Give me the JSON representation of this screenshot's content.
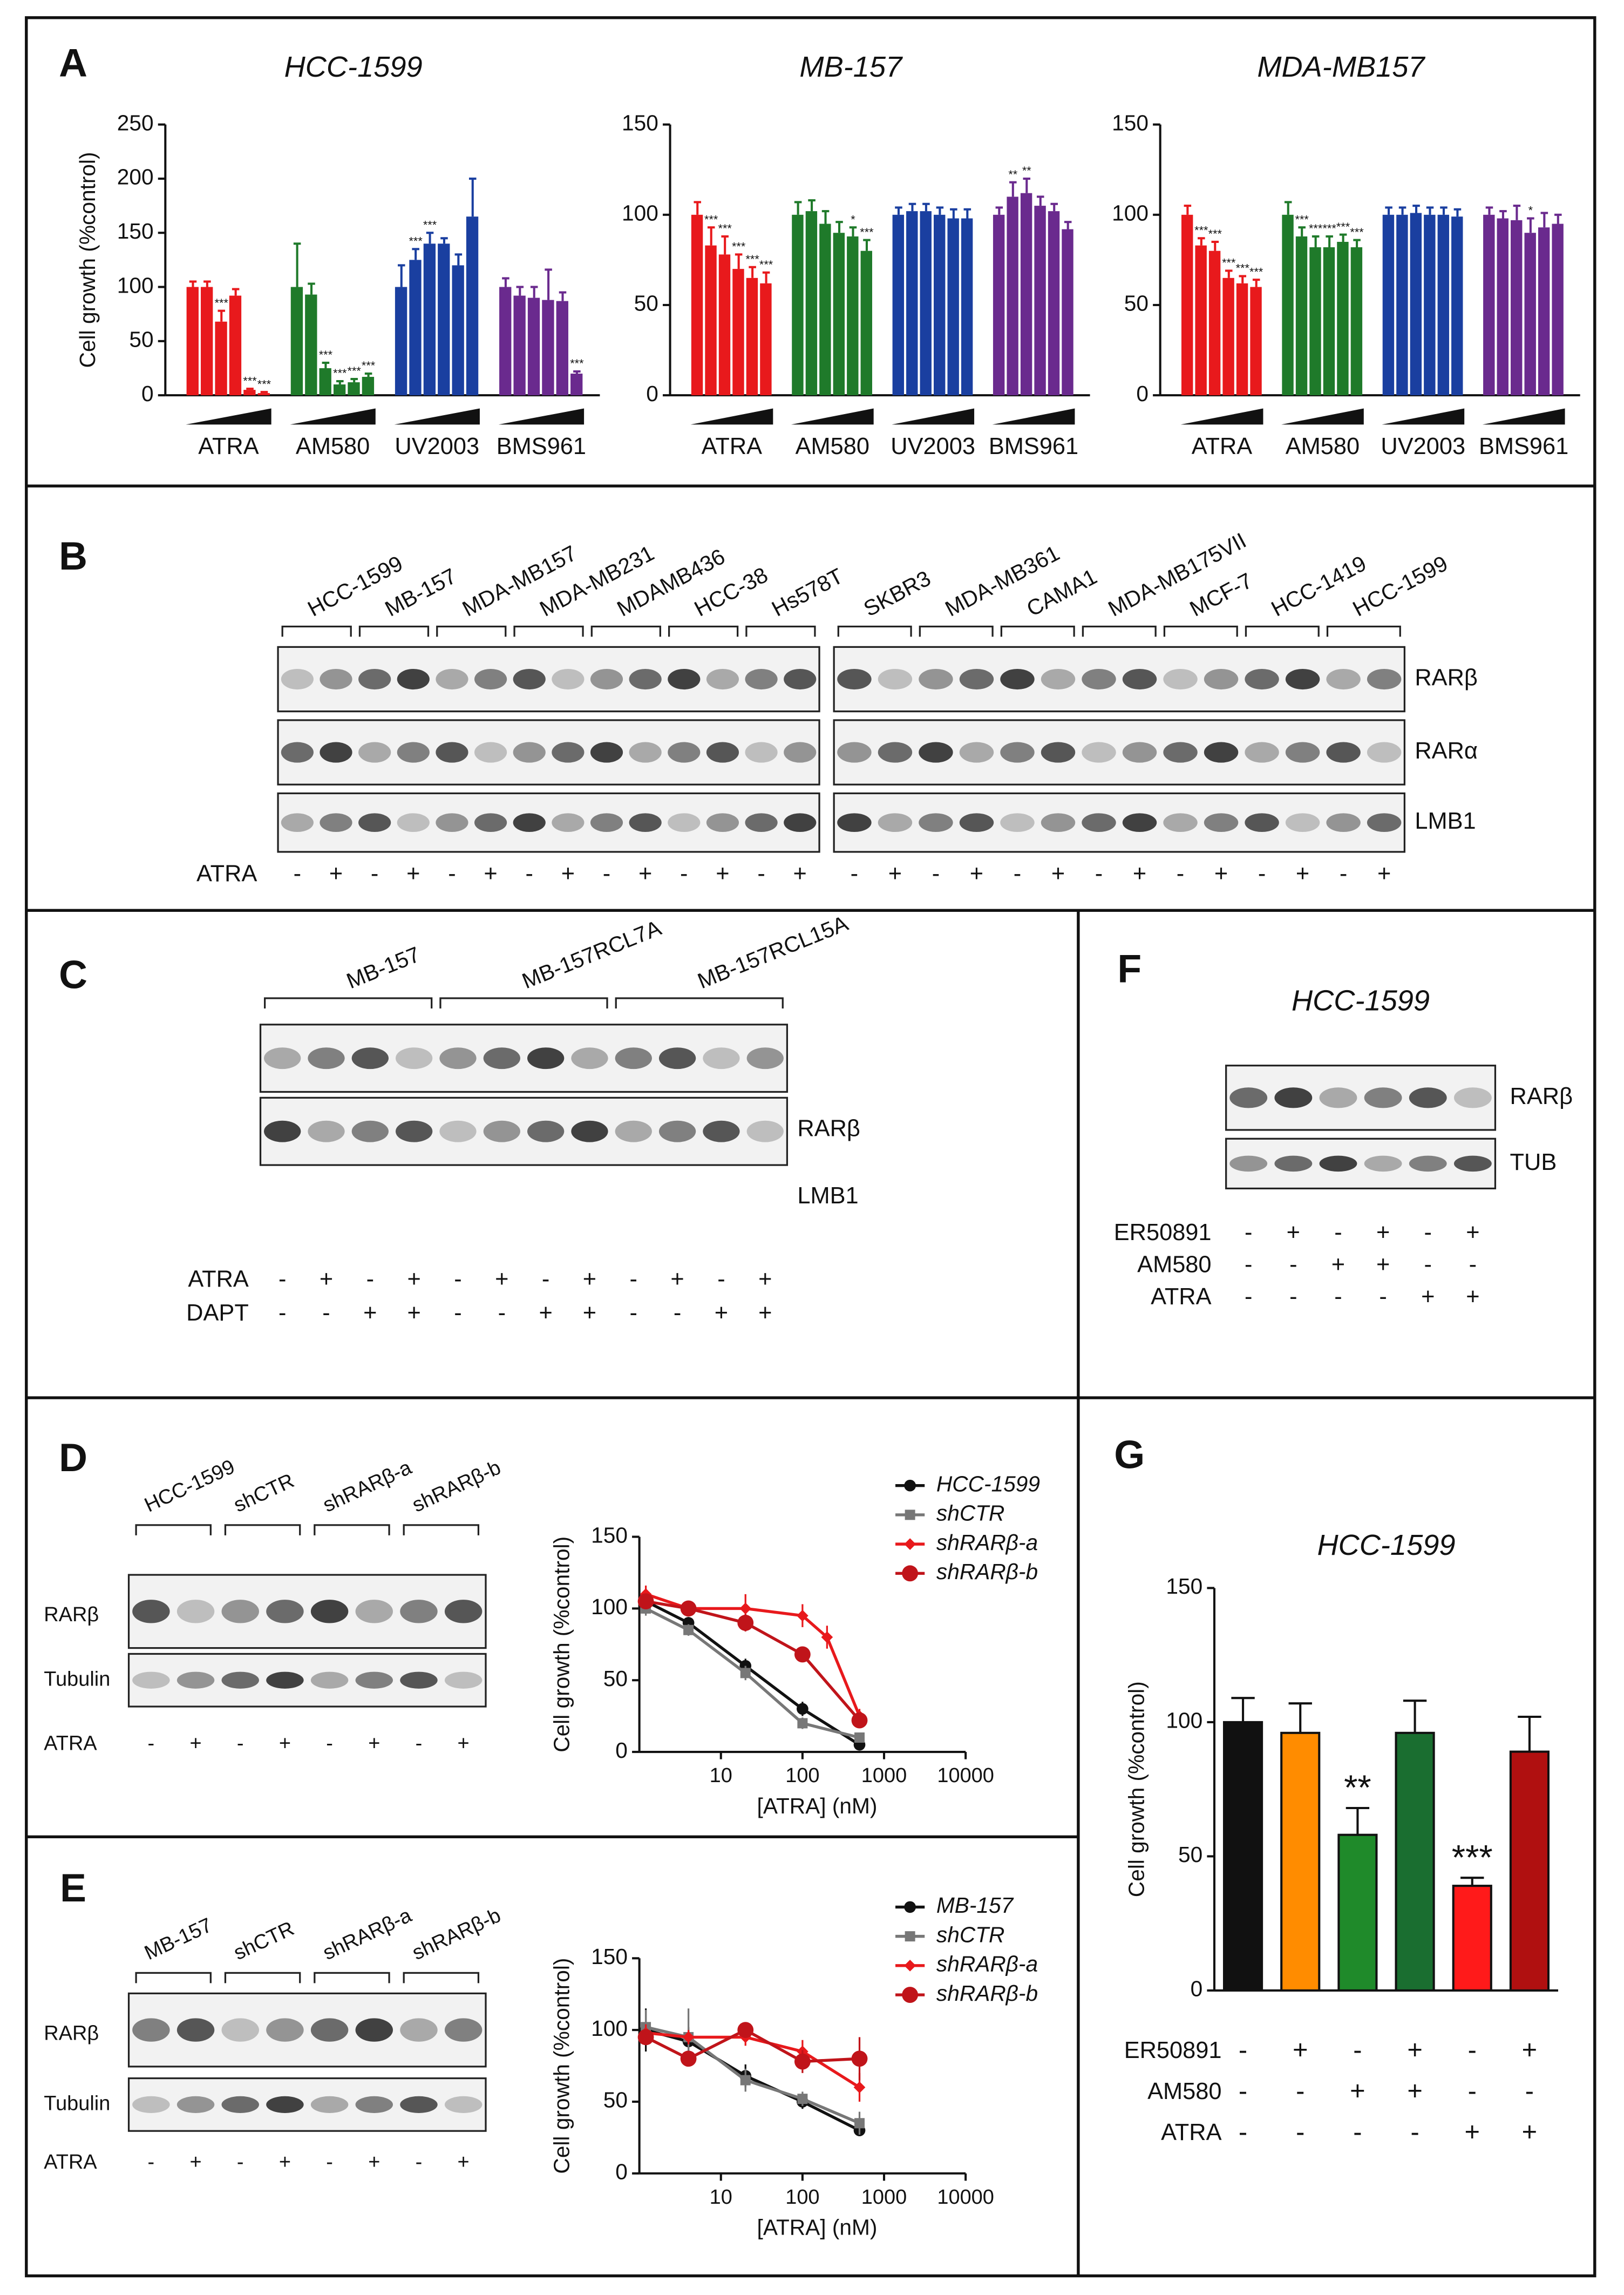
{
  "panel_labels": [
    "A",
    "B",
    "C",
    "D",
    "E",
    "F",
    "G"
  ],
  "chart_data": [
    {
      "type": "bar",
      "title": "HCC-1599",
      "y_label": "Cell growth (%control)",
      "ylim": [
        0,
        250
      ],
      "yticks": [
        0,
        50,
        100,
        150,
        200,
        250
      ],
      "groups": [
        {
          "name": "ATRA",
          "color": "#e8191c",
          "values": [
            100,
            100,
            68,
            92,
            5,
            2
          ],
          "errors": [
            5,
            5,
            10,
            6,
            1,
            1
          ],
          "annotations": [
            null,
            null,
            "***",
            null,
            "***",
            "***"
          ]
        },
        {
          "name": "AM580",
          "color": "#1f7a2a",
          "values": [
            100,
            93,
            25,
            10,
            12,
            17
          ],
          "errors": [
            40,
            10,
            5,
            3,
            3,
            3
          ],
          "annotations": [
            null,
            null,
            "***",
            "***",
            "***",
            "***"
          ]
        },
        {
          "name": "UV2003",
          "color": "#1a3fa0",
          "values": [
            100,
            125,
            140,
            140,
            120,
            165
          ],
          "errors": [
            20,
            10,
            10,
            5,
            10,
            35
          ],
          "annotations": [
            null,
            "***",
            "***",
            null,
            null,
            null
          ]
        },
        {
          "name": "BMS961",
          "color": "#6a2a8e",
          "values": [
            100,
            92,
            90,
            88,
            87,
            20
          ],
          "errors": [
            8,
            8,
            10,
            28,
            8,
            2
          ],
          "annotations": [
            null,
            null,
            null,
            null,
            null,
            "***"
          ]
        }
      ]
    },
    {
      "type": "bar",
      "title": "MB-157",
      "ylim": [
        0,
        150
      ],
      "yticks": [
        0,
        50,
        100,
        150
      ],
      "groups": [
        {
          "name": "ATRA",
          "color": "#e8191c",
          "values": [
            100,
            83,
            78,
            70,
            65,
            62
          ],
          "errors": [
            7,
            10,
            10,
            8,
            6,
            6
          ],
          "annotations": [
            null,
            "***",
            "***",
            "***",
            "***",
            "***"
          ]
        },
        {
          "name": "AM580",
          "color": "#1f7a2a",
          "values": [
            100,
            102,
            95,
            90,
            88,
            80
          ],
          "errors": [
            7,
            6,
            7,
            6,
            5,
            6
          ],
          "annotations": [
            null,
            null,
            null,
            null,
            "*",
            "***"
          ]
        },
        {
          "name": "UV2003",
          "color": "#1a3fa0",
          "values": [
            100,
            102,
            102,
            100,
            98,
            98
          ],
          "errors": [
            4,
            4,
            4,
            4,
            5,
            5
          ],
          "annotations": [
            null,
            null,
            null,
            null,
            null,
            null
          ]
        },
        {
          "name": "BMS961",
          "color": "#6a2a8e",
          "values": [
            100,
            110,
            112,
            105,
            102,
            92
          ],
          "errors": [
            4,
            8,
            8,
            5,
            4,
            4
          ],
          "annotations": [
            null,
            "**",
            "**",
            null,
            null,
            null
          ]
        }
      ]
    },
    {
      "type": "bar",
      "title": "MDA-MB157",
      "ylim": [
        0,
        150
      ],
      "yticks": [
        0,
        50,
        100,
        150
      ],
      "groups": [
        {
          "name": "ATRA",
          "color": "#e8191c",
          "values": [
            100,
            83,
            80,
            65,
            62,
            60
          ],
          "errors": [
            5,
            4,
            5,
            4,
            4,
            4
          ],
          "annotations": [
            null,
            "***",
            "***",
            "***",
            "***",
            "***"
          ]
        },
        {
          "name": "AM580",
          "color": "#1f7a2a",
          "values": [
            100,
            88,
            82,
            82,
            85,
            82
          ],
          "errors": [
            7,
            5,
            6,
            6,
            4,
            4
          ],
          "annotations": [
            null,
            "***",
            "***",
            "***",
            "***",
            "***"
          ]
        },
        {
          "name": "UV2003",
          "color": "#1a3fa0",
          "values": [
            100,
            100,
            101,
            100,
            100,
            99
          ],
          "errors": [
            4,
            4,
            4,
            4,
            4,
            4
          ],
          "annotations": [
            null,
            null,
            null,
            null,
            null,
            null
          ]
        },
        {
          "name": "BMS961",
          "color": "#6a2a8e",
          "values": [
            100,
            98,
            97,
            90,
            93,
            95
          ],
          "errors": [
            4,
            4,
            8,
            8,
            8,
            5
          ],
          "annotations": [
            null,
            null,
            null,
            "*",
            null,
            null
          ]
        }
      ]
    },
    {
      "type": "line",
      "y_label": "Cell growth (%control)",
      "x_label": "[ATRA] (nM)",
      "log_x": true,
      "xlim": [
        1,
        10000
      ],
      "xticks": [
        10,
        100,
        1000,
        10000
      ],
      "ylim": [
        0,
        150
      ],
      "yticks": [
        0,
        50,
        100,
        150
      ],
      "series": [
        {
          "name": "HCC-1599",
          "color": "#111111",
          "marker": "circle",
          "x": [
            1.2,
            4,
            20,
            100,
            500
          ],
          "values": [
            105,
            90,
            60,
            30,
            5
          ],
          "errors": [
            8,
            4,
            5,
            5,
            3
          ]
        },
        {
          "name": "shCTR",
          "color": "#777777",
          "marker": "square",
          "x": [
            1.2,
            4,
            20,
            100,
            500
          ],
          "values": [
            100,
            85,
            55,
            20,
            10
          ],
          "errors": [
            5,
            4,
            5,
            4,
            3
          ]
        },
        {
          "name": "shRARβ-a",
          "color": "#e8191c",
          "marker": "diamond",
          "x": [
            1.2,
            4,
            20,
            100,
            200,
            500
          ],
          "values": [
            110,
            100,
            100,
            95,
            80,
            25
          ],
          "errors": [
            6,
            5,
            10,
            8,
            8,
            5
          ]
        },
        {
          "name": "shRARβ-b",
          "color": "#c0141a",
          "marker": "dot",
          "x": [
            1.2,
            4,
            20,
            100,
            500
          ],
          "values": [
            105,
            100,
            90,
            68,
            22
          ],
          "errors": [
            5,
            4,
            6,
            5,
            5
          ]
        }
      ]
    },
    {
      "type": "line",
      "y_label": "Cell growth (%control)",
      "x_label": "[ATRA] (nM)",
      "log_x": true,
      "xlim": [
        1,
        10000
      ],
      "xticks": [
        10,
        100,
        1000,
        10000
      ],
      "ylim": [
        0,
        150
      ],
      "yticks": [
        0,
        50,
        100,
        150
      ],
      "series": [
        {
          "name": "MB-157",
          "color": "#111111",
          "marker": "circle",
          "x": [
            1.2,
            4,
            20,
            100,
            500
          ],
          "values": [
            100,
            92,
            68,
            50,
            30
          ],
          "errors": [
            15,
            10,
            8,
            5,
            4
          ]
        },
        {
          "name": "shCTR",
          "color": "#777777",
          "marker": "square",
          "x": [
            1.2,
            4,
            20,
            100,
            500
          ],
          "values": [
            102,
            95,
            65,
            52,
            35
          ],
          "errors": [
            12,
            20,
            8,
            5,
            8
          ]
        },
        {
          "name": "shRARβ-a",
          "color": "#e8191c",
          "marker": "diamond",
          "x": [
            1.2,
            4,
            20,
            100,
            500
          ],
          "values": [
            98,
            95,
            95,
            85,
            60
          ],
          "errors": [
            6,
            5,
            6,
            8,
            10
          ]
        },
        {
          "name": "shRARβ-b",
          "color": "#c0141a",
          "marker": "dot",
          "x": [
            1.2,
            4,
            20,
            100,
            500
          ],
          "values": [
            95,
            80,
            100,
            78,
            80
          ],
          "errors": [
            5,
            5,
            5,
            8,
            15
          ]
        }
      ]
    },
    {
      "type": "bar",
      "title": "HCC-1599",
      "y_label": "Cell growth (%control)",
      "ylim": [
        0,
        150
      ],
      "yticks": [
        0,
        50,
        100,
        150
      ],
      "values": [
        100,
        96,
        58,
        96,
        39,
        89
      ],
      "errors": [
        9,
        11,
        10,
        12,
        3,
        13
      ],
      "colors": [
        "#111111",
        "#ff8c00",
        "#1f8a2a",
        "#1a6e30",
        "#ff1a1a",
        "#b01010"
      ],
      "annotations": [
        null,
        null,
        "**",
        null,
        "***",
        null
      ],
      "conditions": [
        {
          "name": "ER50891",
          "signs": [
            "-",
            "+",
            "-",
            "+",
            "-",
            "+"
          ]
        },
        {
          "name": "AM580",
          "signs": [
            "-",
            "-",
            "+",
            "+",
            "-",
            "-"
          ]
        },
        {
          "name": "ATRA",
          "signs": [
            "-",
            "-",
            "-",
            "-",
            "+",
            "+"
          ]
        }
      ]
    }
  ],
  "blots": {
    "B": {
      "left_lines": [
        "HCC-1599",
        "MB-157",
        "MDA-MB157",
        "MDA-MB231",
        "MDAMB436",
        "HCC-38",
        "Hs578T"
      ],
      "right_lines": [
        "SKBR3",
        "MDA-MB361",
        "CAMA1",
        "MDA-MB175VII",
        "MCF-7",
        "HCC-1419",
        "HCC-1599"
      ],
      "bands": [
        "RARβ",
        "RARα",
        "LMB1"
      ],
      "treatment": "ATRA",
      "signs": [
        "-",
        "+",
        "-",
        "+",
        "-",
        "+",
        "-",
        "+",
        "-",
        "+",
        "-",
        "+",
        "-",
        "+",
        "-",
        "+",
        "-",
        "+",
        "-",
        "+",
        "-",
        "+",
        "-",
        "+",
        "-",
        "+",
        "-",
        "+"
      ]
    },
    "C": {
      "lines": [
        "MB-157",
        "MB-157RCL7A",
        "MB-157RCL15A"
      ],
      "bands": [
        "RARβ",
        "LMB1"
      ],
      "rows": [
        {
          "name": "ATRA",
          "signs": [
            "-",
            "+",
            "-",
            "+",
            "-",
            "+",
            "-",
            "+",
            "-",
            "+",
            "-",
            "+"
          ]
        },
        {
          "name": "DAPT",
          "signs": [
            "-",
            "-",
            "+",
            "+",
            "-",
            "-",
            "+",
            "+",
            "-",
            "-",
            "+",
            "+"
          ]
        }
      ]
    },
    "D": {
      "lines": [
        "HCC-1599",
        "shCTR",
        "shRARβ-a",
        "shRARβ-b"
      ],
      "bands": [
        "RARβ",
        "Tubulin"
      ],
      "treatment": "ATRA",
      "signs": [
        "-",
        "+",
        "-",
        "+",
        "-",
        "+",
        "-",
        "+"
      ]
    },
    "E": {
      "lines": [
        "MB-157",
        "shCTR",
        "shRARβ-a",
        "shRARβ-b"
      ],
      "bands": [
        "RARβ",
        "Tubulin"
      ],
      "treatment": "ATRA",
      "signs": [
        "-",
        "+",
        "-",
        "+",
        "-",
        "+",
        "-",
        "+"
      ]
    },
    "F": {
      "title": "HCC-1599",
      "bands": [
        "RARβ",
        "TUB"
      ],
      "rows": [
        {
          "name": "ER50891",
          "signs": [
            "-",
            "+",
            "-",
            "+",
            "-",
            "+"
          ]
        },
        {
          "name": "AM580",
          "signs": [
            "-",
            "-",
            "+",
            "+",
            "-",
            "-"
          ]
        },
        {
          "name": "ATRA",
          "signs": [
            "-",
            "-",
            "-",
            "-",
            "+",
            "+"
          ]
        }
      ]
    }
  }
}
